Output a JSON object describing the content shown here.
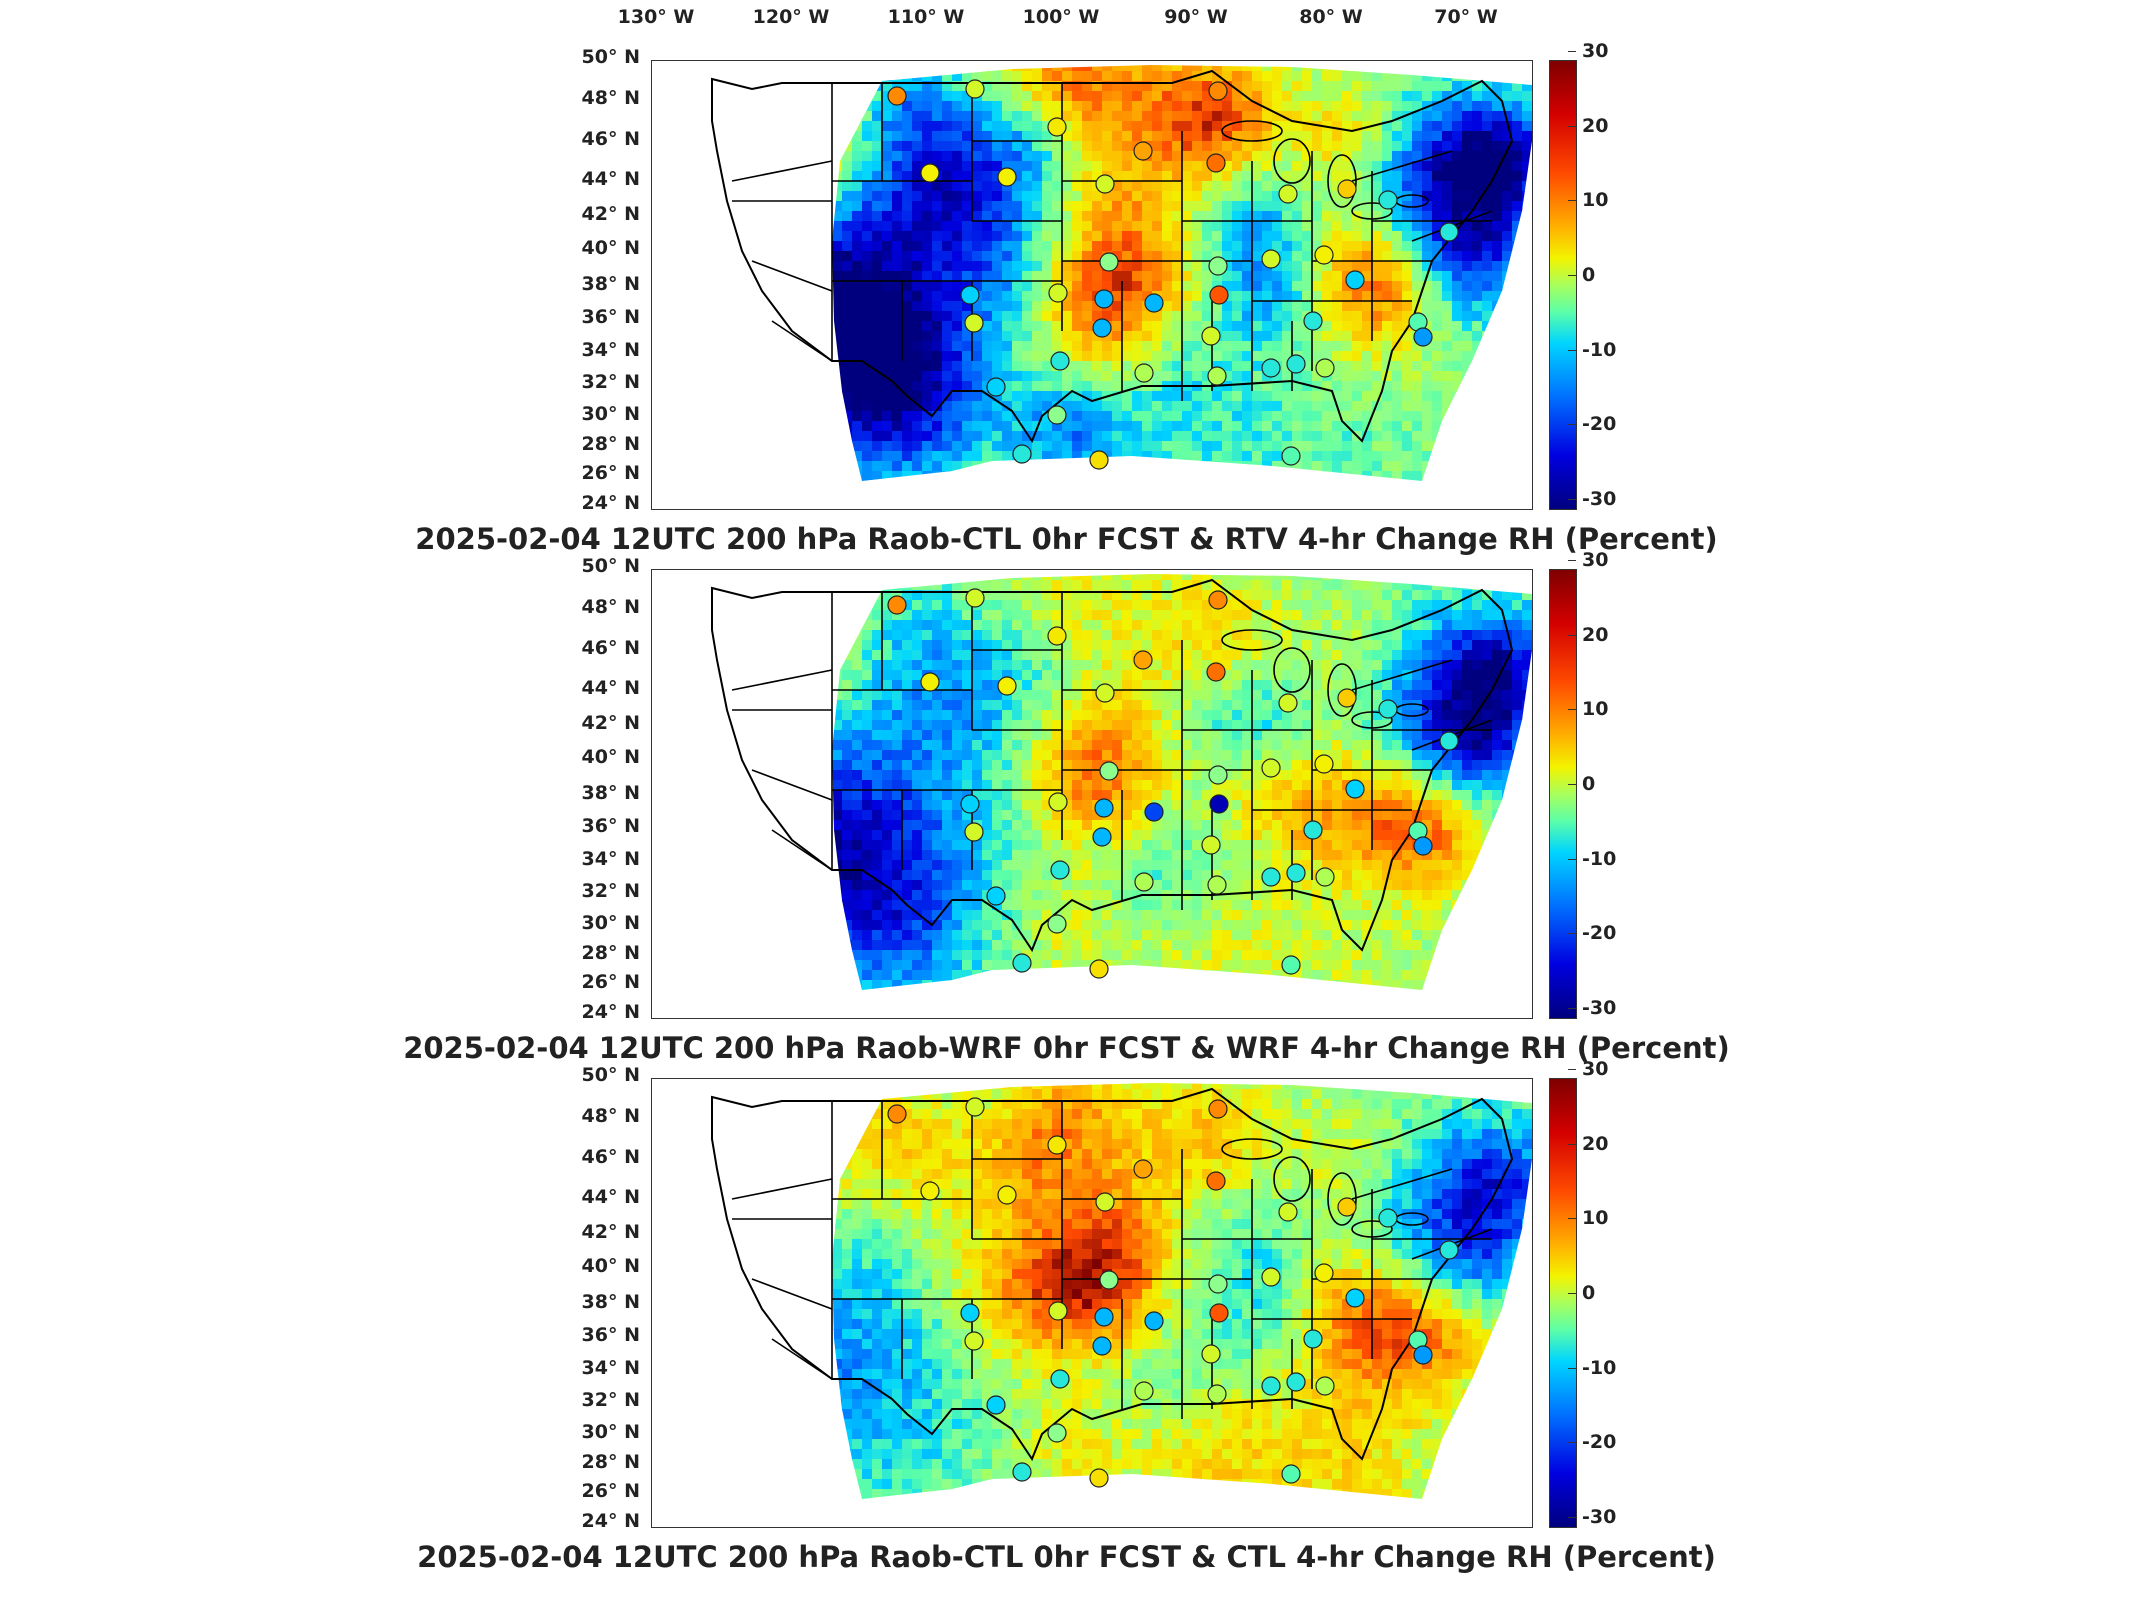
{
  "longitude_labels": [
    "130° W",
    "120° W",
    "110° W",
    "100° W",
    "90° W",
    "80° W",
    "70° W"
  ],
  "latitude_labels": [
    "50° N",
    "48° N",
    "46° N",
    "44° N",
    "42° N",
    "40° N",
    "38° N",
    "36° N",
    "34° N",
    "32° N",
    "30° N",
    "28° N",
    "26° N",
    "24° N"
  ],
  "colorbar_ticks": [
    "30",
    "20",
    "10",
    "0",
    "-10",
    "-20",
    "-30"
  ],
  "colorbar_range": [
    -30,
    30
  ],
  "colormap": "jet",
  "colors": {
    "dark_red": "#7f0000",
    "red": "#ff2000",
    "orange": "#ff8c00",
    "yellow": "#f3f300",
    "green": "#8dff8d",
    "cyan": "#00e0ff",
    "blue": "#0050ff",
    "dark_blue": "#00007f",
    "state_lines": "#000000"
  },
  "panels": [
    {
      "title": "2025-02-04 12UTC 200 hPa Raob-CTL 0hr FCST & RTV 4-hr Change RH (Percent)",
      "field_pattern": "rtv"
    },
    {
      "title": "2025-02-04 12UTC 200 hPa Raob-WRF 0hr FCST & WRF 4-hr Change RH (Percent)",
      "field_pattern": "wrf"
    },
    {
      "title": "2025-02-04 12UTC 200 hPa Raob-CTL 0hr FCST & CTL 4-hr Change RH (Percent)",
      "field_pattern": "ctl"
    }
  ]
}
